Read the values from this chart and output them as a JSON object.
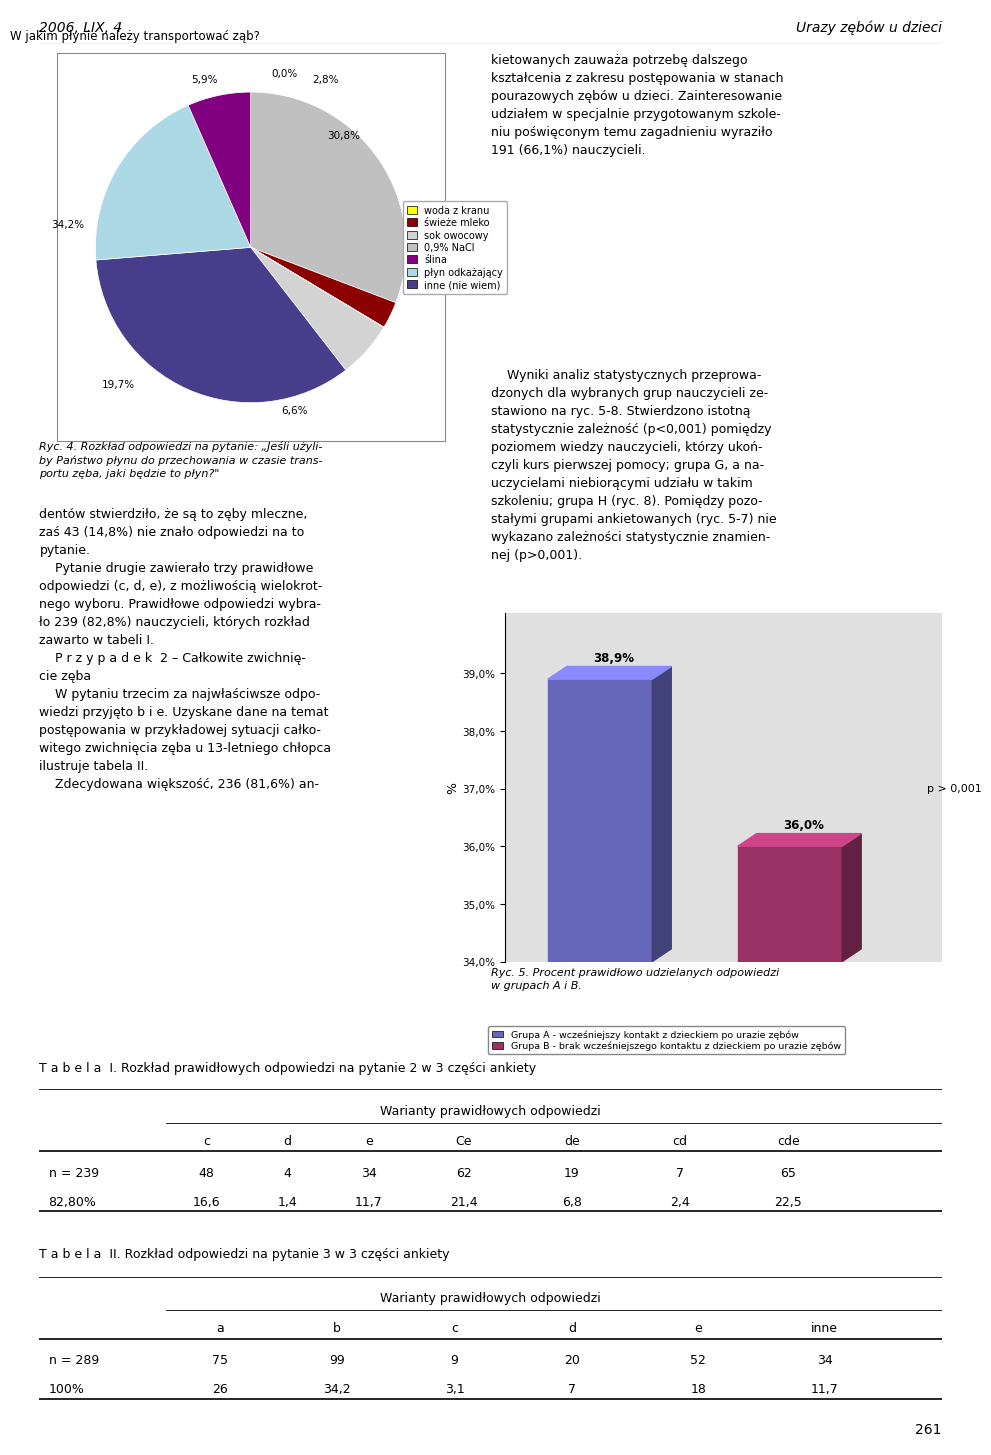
{
  "page_header_left": "2006, LIX, 4",
  "page_header_right": "Urazy zębów u dzieci",
  "page_number": "261",
  "pie_title": "W jakim płynie należy transportować ząb?",
  "pie_values": [
    30.8,
    2.8,
    0.01,
    5.9,
    34.2,
    19.7,
    6.6
  ],
  "pie_labels": [
    "30,8%",
    "2,8%",
    "0,0%",
    "5,9%",
    "34,2%",
    "19,7%",
    "6,6%"
  ],
  "pie_colors": [
    "#c0c0c0",
    "#8b0000",
    "#ffff99",
    "#d3d3d3",
    "#483d8b",
    "#add8e6",
    "#800080"
  ],
  "pie_legend_labels": [
    "woda z kranu",
    "świeże mleko",
    "sok owocowy",
    "0,9% NaCl",
    "ślina",
    "płyn odkażający",
    "inne (nie wiem)"
  ],
  "pie_legend_colors": [
    "#ffff00",
    "#8b0000",
    "#d3d3d3",
    "#c0c0c0",
    "#800080",
    "#add8e6",
    "#483d8b"
  ],
  "fig_caption": "Ryc. 4. Rozkład odpowiedzi na pytanie: „Jeśli użyli-\nby Państwo płynu do przechowania w czasie trans-\nportu zęba, jaki będzie to płyn?\"",
  "left_text_1": "dentów stwierdziło, że są to zęby mleczne,\nzaś 43 (14,8%) nie znało odpowiedzi na to\npytanie.",
  "left_text_2": "    Pytanie drugie zawierało trzy prawidłowe\nodpowiedzi (c, d, e), z możliwością wielokrot-\nnego wyboru. Prawidłowe odpowiedzi wybra-\nło 239 (82,8%) nauczycieli, których rozkład\nzawarto w tabeli I.",
  "left_text_3": "    P r z y p a d e k  2 – Całkowite zwichnię-\ncie zęba",
  "left_text_4": "    W pytaniu trzecim za najwłaściwsze odpo-\nwiedzi przyjęto b i e. Uzyskane dane na temat\npostępowania w przykładowej sytuacji całko-\nwitego zwichnięcia zęba u 13-letniego chłopca\nilustruje tabela II.",
  "left_text_5": "    Zdecydowana większość, 236 (81,6%) an-",
  "right_text_1": "kietowanych zauważa potrzebę dalszego\nkształcenia z zakresu postępowania w stanach\npourazowych zębów u dzieci. Zainteresowanie\nudziałem w specjalnie przygotowanym szkole-\nniu poświęconym temu zagadnieniu wyraziło\n191 (66,1%) nauczycieli.",
  "right_text_2": "    Wyniki analiz statystycznych przeprowa-\ndzonych dla wybranych grup nauczycieli ze-\nstawiono na ryc. 5-8. Stwierdzono istotną\nstatystycznie zależność (p<0,001) pomiędzy\npoziomem wiedzy nauczycieli, którzy ukoń-\nczyli kurs pierwszej pomocy; grupa G, a na-\nuczycielami niebiorącymi udziału w takim\nszkoleniu; grupa H (ryc. 8). Pomiędzy pozo-\nstałymi grupami ankietowanych (ryc. 5-7) nie\nwykazano zależności statystycznie znamien-\nnej (p>0,001).",
  "bar_values": [
    38.9,
    36.0
  ],
  "bar_colors": [
    "#6666bb",
    "#993366"
  ],
  "bar_labels": [
    "38,9%",
    "36,0%"
  ],
  "bar_ylabel": "%",
  "bar_ylim": [
    34.0,
    39.5
  ],
  "bar_yticks": [
    34.0,
    35.0,
    36.0,
    37.0,
    38.0,
    39.0
  ],
  "bar_ytick_labels": [
    "34,0%",
    "35,0%",
    "36,0%",
    "37,0%",
    "38,0%",
    "39,0%"
  ],
  "bar_annotation": "p > 0,001",
  "bar_legend": [
    "Grupa A - wcześniejszy kontakt z dzieckiem po urazie zębów",
    "Grupa B - brak wcześniejszego kontaktu z dzieckiem po urazie zębów"
  ],
  "bar_legend_colors": [
    "#6666bb",
    "#993366"
  ],
  "bar_caption": "Ryc. 5. Procent prawidłowo udzielanych odpowiedzi\nw grupach A i B.",
  "table1_title": "T a b e l a  I. Rozkład prawidłowych odpowiedzi na pytanie 2 w 3 części ankiety",
  "table1_subheader": "Warianty prawidłowych odpowiedzi",
  "table1_cols": [
    "",
    "c",
    "d",
    "e",
    "Ce",
    "de",
    "cd",
    "cde"
  ],
  "table1_rows": [
    [
      "n = 239",
      "48",
      "4",
      "34",
      "62",
      "19",
      "7",
      "65"
    ],
    [
      "82,80%",
      "16,6",
      "1,4",
      "11,7",
      "21,4",
      "6,8",
      "2,4",
      "22,5"
    ]
  ],
  "table2_title": "T a b e l a  II. Rozkład odpowiedzi na pytanie 3 w 3 części ankiety",
  "table2_subheader": "Warianty prawidłowych odpowiedzi",
  "table2_cols": [
    "",
    "a",
    "b",
    "c",
    "d",
    "e",
    "inne"
  ],
  "table2_rows": [
    [
      "n = 289",
      "75",
      "99",
      "9",
      "20",
      "52",
      "34"
    ],
    [
      "100%",
      "26",
      "34,2",
      "3,1",
      "7",
      "18",
      "11,7"
    ]
  ],
  "bg_color": "#ffffff"
}
